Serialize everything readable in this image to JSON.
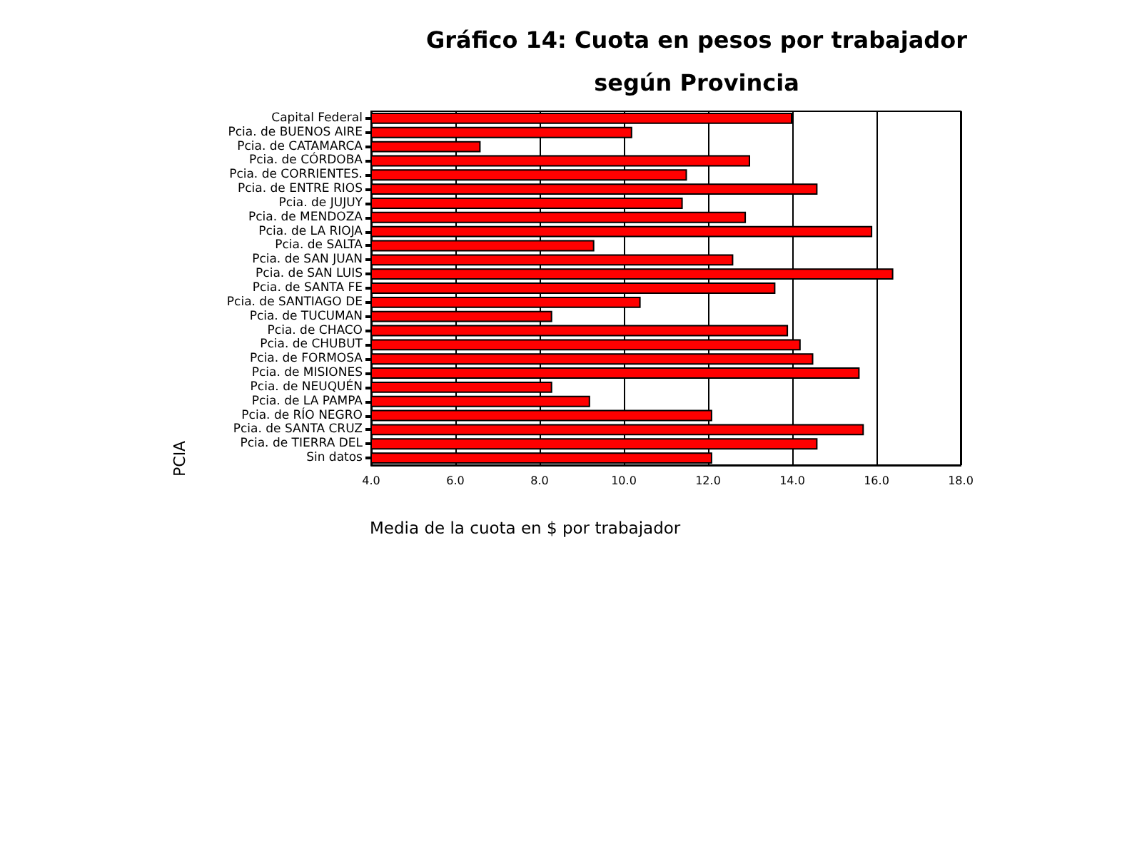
{
  "chart_data": {
    "type": "bar",
    "orientation": "horizontal",
    "title": "Gráfico 14: Cuota en pesos por trabajador",
    "subtitle": "según Provincia",
    "xlabel": "Media de la cuota en $ por trabajador",
    "ylabel": "PCIA",
    "categories": [
      "Capital Federal",
      "Pcia. de BUENOS AIRE",
      "Pcia. de CATAMARCA",
      "Pcia. de CÓRDOBA",
      "Pcia. de CORRIENTES.",
      "Pcia. de ENTRE RIOS",
      "Pcia. de JUJUY",
      "Pcia. de MENDOZA",
      "Pcia. de LA RIOJA",
      "Pcia. de SALTA",
      "Pcia. de SAN JUAN",
      "Pcia. de SAN LUIS",
      "Pcia. de SANTA FE",
      "Pcia. de SANTIAGO DE",
      "Pcia. de TUCUMAN",
      "Pcia. de CHACO",
      "Pcia. de CHUBUT",
      "Pcia. de FORMOSA",
      "Pcia. de MISIONES",
      "Pcia. de NEUQUÉN",
      "Pcia. de LA PAMPA",
      "Pcia. de RÍO NEGRO",
      "Pcia. de SANTA CRUZ",
      "Pcia. de TIERRA DEL",
      "Sin datos"
    ],
    "values": [
      14.0,
      10.2,
      6.6,
      13.0,
      11.5,
      14.6,
      11.4,
      12.9,
      15.9,
      9.3,
      12.6,
      16.4,
      13.6,
      10.4,
      8.3,
      13.9,
      14.2,
      14.5,
      15.6,
      8.3,
      9.2,
      12.1,
      15.7,
      14.6,
      12.1
    ],
    "color": "#ff0000",
    "xlim": [
      4,
      18
    ],
    "xticks": [
      {
        "value": 4,
        "label": "4.0"
      },
      {
        "value": 6,
        "label": "6.0"
      },
      {
        "value": 8,
        "label": "8.0"
      },
      {
        "value": 10,
        "label": "10.0"
      },
      {
        "value": 12,
        "label": "12.0"
      },
      {
        "value": 14,
        "label": "14.0"
      },
      {
        "value": 16,
        "label": "16.0"
      },
      {
        "value": 18,
        "label": "18.0"
      }
    ],
    "grid": "x"
  }
}
